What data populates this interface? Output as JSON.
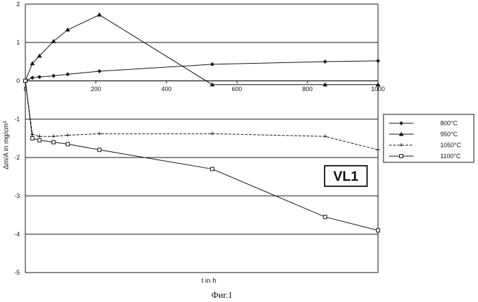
{
  "chart_data": {
    "type": "line",
    "xlabel": "t in h",
    "ylabel": "Δm/A in mg/cm²",
    "xlim": [
      0,
      1000
    ],
    "ylim": [
      -5,
      2
    ],
    "x_ticks": [
      "0",
      "200",
      "400",
      "600",
      "800",
      "1000"
    ],
    "y_ticks": [
      "2",
      "1",
      "0",
      "-1",
      "-2",
      "-3",
      "-4",
      "-5"
    ],
    "grid": "horizontal",
    "legend_position": "right",
    "annotation": "VL1",
    "caption": "Фиг.1",
    "series": [
      {
        "name": "800°C",
        "marker": "diamond",
        "dashed": false,
        "points": [
          [
            0,
            0
          ],
          [
            20,
            0.08
          ],
          [
            40,
            0.1
          ],
          [
            80,
            0.13
          ],
          [
            120,
            0.17
          ],
          [
            210,
            0.25
          ],
          [
            530,
            0.43
          ],
          [
            850,
            0.5
          ],
          [
            1000,
            0.52
          ]
        ]
      },
      {
        "name": "950°C",
        "marker": "triangle",
        "dashed": false,
        "points": [
          [
            0,
            0
          ],
          [
            20,
            0.45
          ],
          [
            40,
            0.65
          ],
          [
            80,
            1.03
          ],
          [
            120,
            1.33
          ],
          [
            210,
            1.72
          ],
          [
            530,
            -0.1
          ],
          [
            850,
            -0.1
          ],
          [
            1000,
            -0.1
          ]
        ]
      },
      {
        "name": "1050°C",
        "marker": "star",
        "dashed": true,
        "points": [
          [
            0,
            0
          ],
          [
            20,
            -1.4
          ],
          [
            40,
            -1.45
          ],
          [
            80,
            -1.45
          ],
          [
            120,
            -1.42
          ],
          [
            210,
            -1.38
          ],
          [
            530,
            -1.38
          ],
          [
            850,
            -1.45
          ],
          [
            1000,
            -1.8
          ]
        ]
      },
      {
        "name": "1100°C",
        "marker": "square",
        "dashed": false,
        "points": [
          [
            0,
            0
          ],
          [
            20,
            -1.5
          ],
          [
            40,
            -1.55
          ],
          [
            80,
            -1.6
          ],
          [
            120,
            -1.65
          ],
          [
            210,
            -1.8
          ],
          [
            530,
            -2.3
          ],
          [
            850,
            -3.55
          ],
          [
            1000,
            -3.9
          ]
        ]
      }
    ]
  }
}
